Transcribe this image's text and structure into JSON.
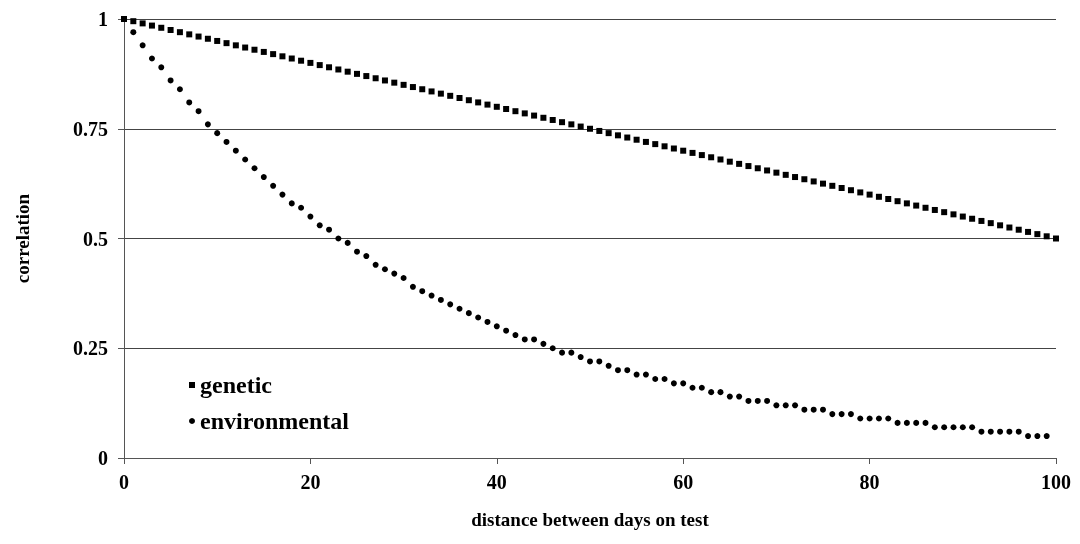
{
  "chart_data": {
    "type": "scatter",
    "xlabel": "distance between days on test",
    "ylabel": "correlation",
    "xlim": [
      0,
      100
    ],
    "xticks": [
      0,
      20,
      40,
      60,
      80,
      100
    ],
    "ylim": [
      0,
      1
    ],
    "yticks": [
      0,
      0.25,
      0.5,
      0.75,
      1
    ],
    "grid": "y",
    "legend": "bottom left",
    "x": [
      0,
      1,
      2,
      3,
      4,
      5,
      6,
      7,
      8,
      9,
      10,
      11,
      12,
      13,
      14,
      15,
      16,
      17,
      18,
      19,
      20,
      21,
      22,
      23,
      24,
      25,
      26,
      27,
      28,
      29,
      30,
      31,
      32,
      33,
      34,
      35,
      36,
      37,
      38,
      39,
      40,
      41,
      42,
      43,
      44,
      45,
      46,
      47,
      48,
      49,
      50,
      51,
      52,
      53,
      54,
      55,
      56,
      57,
      58,
      59,
      60,
      61,
      62,
      63,
      64,
      65,
      66,
      67,
      68,
      69,
      70,
      71,
      72,
      73,
      74,
      75,
      76,
      77,
      78,
      79,
      80,
      81,
      82,
      83,
      84,
      85,
      86,
      87,
      88,
      89,
      90,
      91,
      92,
      93,
      94,
      95,
      96,
      97,
      98,
      99,
      100
    ],
    "series": [
      {
        "name": "genetic",
        "color": "#000000",
        "marker": "square",
        "values": [
          1,
          0.995,
          0.99,
          0.985,
          0.98,
          0.975,
          0.97,
          0.965,
          0.96,
          0.955,
          0.95,
          0.945,
          0.94,
          0.935,
          0.93,
          0.925,
          0.92,
          0.915,
          0.91,
          0.905,
          0.9,
          0.895,
          0.89,
          0.885,
          0.88,
          0.875,
          0.87,
          0.865,
          0.86,
          0.855,
          0.85,
          0.845,
          0.84,
          0.835,
          0.83,
          0.825,
          0.82,
          0.815,
          0.81,
          0.805,
          0.8,
          0.795,
          0.79,
          0.785,
          0.78,
          0.775,
          0.77,
          0.765,
          0.76,
          0.755,
          0.75,
          0.745,
          0.74,
          0.735,
          0.73,
          0.725,
          0.72,
          0.715,
          0.71,
          0.705,
          0.7,
          0.695,
          0.69,
          0.685,
          0.68,
          0.675,
          0.67,
          0.665,
          0.66,
          0.655,
          0.65,
          0.645,
          0.64,
          0.635,
          0.63,
          0.625,
          0.62,
          0.615,
          0.61,
          0.605,
          0.6,
          0.595,
          0.59,
          0.585,
          0.58,
          0.575,
          0.57,
          0.565,
          0.56,
          0.555,
          0.55,
          0.545,
          0.54,
          0.535,
          0.53,
          0.525,
          0.52,
          0.515,
          0.51,
          0.505,
          0.5
        ]
      },
      {
        "name": "environmental",
        "color": "#000000",
        "marker": "circle",
        "x": [
          1,
          2,
          3,
          4,
          5,
          6,
          7,
          8,
          9,
          10,
          11,
          12,
          13,
          14,
          15,
          16,
          17,
          18,
          19,
          20,
          21,
          22,
          23,
          24,
          25,
          26,
          27,
          28,
          29,
          30,
          31,
          32,
          33,
          34,
          35,
          36,
          37,
          38,
          39,
          40,
          41,
          42,
          43,
          44,
          45,
          46,
          47,
          48,
          49,
          50,
          51,
          52,
          53,
          54,
          55,
          56,
          57,
          58,
          59,
          60,
          61,
          62,
          63,
          64,
          65,
          66,
          67,
          68,
          69,
          70,
          71,
          72,
          73,
          74,
          75,
          76,
          77,
          78,
          79,
          80,
          81,
          82,
          83,
          84,
          85,
          86,
          87,
          88,
          89,
          90,
          91,
          92,
          93,
          94,
          95,
          96,
          97,
          98,
          99
        ],
        "values": [
          0.97,
          0.94,
          0.91,
          0.89,
          0.86,
          0.84,
          0.81,
          0.79,
          0.76,
          0.74,
          0.72,
          0.7,
          0.68,
          0.66,
          0.64,
          0.62,
          0.6,
          0.58,
          0.57,
          0.55,
          0.53,
          0.52,
          0.5,
          0.49,
          0.47,
          0.46,
          0.44,
          0.43,
          0.42,
          0.41,
          0.39,
          0.38,
          0.37,
          0.36,
          0.35,
          0.34,
          0.33,
          0.32,
          0.31,
          0.3,
          0.29,
          0.28,
          0.27,
          0.27,
          0.26,
          0.25,
          0.24,
          0.24,
          0.23,
          0.22,
          0.22,
          0.21,
          0.2,
          0.2,
          0.19,
          0.19,
          0.18,
          0.18,
          0.17,
          0.17,
          0.16,
          0.16,
          0.15,
          0.15,
          0.14,
          0.14,
          0.13,
          0.13,
          0.13,
          0.12,
          0.12,
          0.12,
          0.11,
          0.11,
          0.11,
          0.1,
          0.1,
          0.1,
          0.09,
          0.09,
          0.09,
          0.09,
          0.08,
          0.08,
          0.08,
          0.08,
          0.07,
          0.07,
          0.07,
          0.07,
          0.07,
          0.06,
          0.06,
          0.06,
          0.06,
          0.06,
          0.05,
          0.05,
          0.05
        ]
      }
    ]
  }
}
